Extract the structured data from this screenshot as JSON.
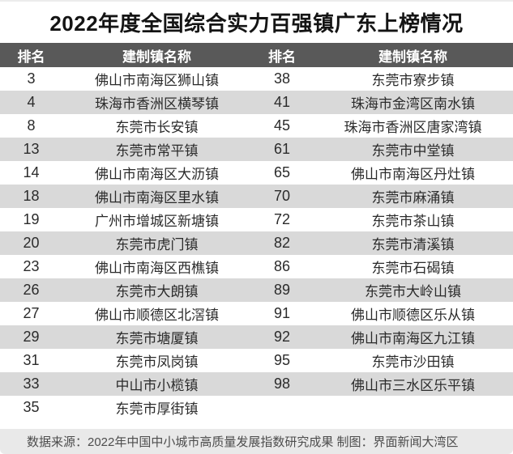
{
  "title": "2022年度全国综合实力百强镇广东上榜情况",
  "colors": {
    "header_bg": "#595959",
    "row_alt_bg": "#d9d9d9",
    "footer_bg": "#e9e9e9",
    "title_color": "#141414"
  },
  "chart_data": {
    "type": "table",
    "title": "2022年度全国综合实力百强镇广东上榜情况",
    "columns": [
      "排名",
      "建制镇名称",
      "排名",
      "建制镇名称"
    ],
    "rows": [
      [
        "3",
        "佛山市南海区狮山镇",
        "38",
        "东莞市寮步镇"
      ],
      [
        "4",
        "珠海市香洲区横琴镇",
        "41",
        "珠海市金湾区南水镇"
      ],
      [
        "8",
        "东莞市长安镇",
        "45",
        "珠海市香洲区唐家湾镇"
      ],
      [
        "13",
        "东莞市常平镇",
        "61",
        "东莞市中堂镇"
      ],
      [
        "14",
        "佛山市南海区大沥镇",
        "65",
        "佛山市南海区丹灶镇"
      ],
      [
        "18",
        "佛山市南海区里水镇",
        "70",
        "东莞市麻涌镇"
      ],
      [
        "19",
        "广州市增城区新塘镇",
        "72",
        "东莞市茶山镇"
      ],
      [
        "20",
        "东莞市虎门镇",
        "82",
        "东莞市清溪镇"
      ],
      [
        "23",
        "佛山市南海区西樵镇",
        "86",
        "东莞市石碣镇"
      ],
      [
        "26",
        "东莞市大朗镇",
        "89",
        "东莞市大岭山镇"
      ],
      [
        "27",
        "佛山市顺德区北滘镇",
        "91",
        "佛山市顺德区乐从镇"
      ],
      [
        "29",
        "东莞市塘厦镇",
        "92",
        "佛山市南海区九江镇"
      ],
      [
        "31",
        "东莞市凤岗镇",
        "95",
        "东莞市沙田镇"
      ],
      [
        "33",
        "中山市小榄镇",
        "98",
        "佛山市三水区乐平镇"
      ],
      [
        "35",
        "东莞市厚街镇",
        "",
        ""
      ]
    ]
  },
  "footer": {
    "text": "数据来源：2022年中国中小城市高质量发展指数研究成果 制图：界面新闻大湾区"
  }
}
